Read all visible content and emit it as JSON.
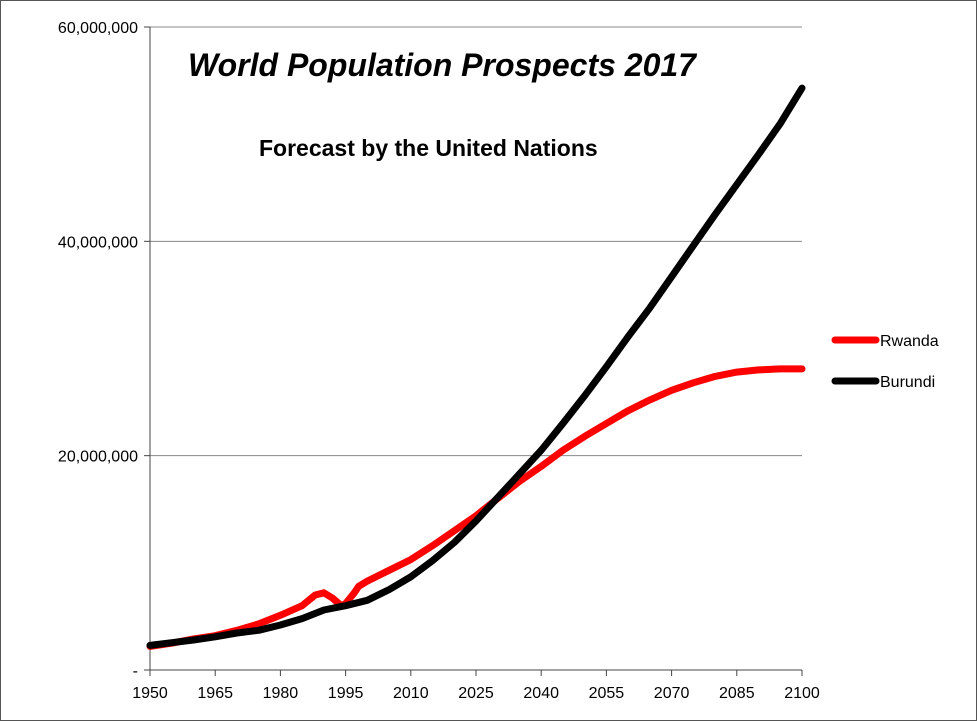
{
  "chart_data": {
    "type": "line",
    "title": "World Population Prospects 2017",
    "subtitle": "Forecast by the United Nations",
    "xlabel": "",
    "ylabel": "",
    "xlim": [
      1950,
      2100
    ],
    "ylim": [
      0,
      60000000
    ],
    "x_ticks": [
      "1950",
      "1965",
      "1980",
      "1995",
      "2010",
      "2025",
      "2040",
      "2055",
      "2070",
      "2085",
      "2100"
    ],
    "y_ticks": [
      {
        "value": 0,
        "label": "-"
      },
      {
        "value": 20000000,
        "label": "20,000,000"
      },
      {
        "value": 40000000,
        "label": "40,000,000"
      },
      {
        "value": 60000000,
        "label": "60,000,000"
      }
    ],
    "grid": "horizontal",
    "legend_position": "right",
    "series": [
      {
        "name": "Rwanda",
        "color": "#ff0000",
        "x": [
          1950,
          1955,
          1960,
          1965,
          1970,
          1975,
          1980,
          1985,
          1988,
          1990,
          1992,
          1994,
          1995,
          1997,
          1998,
          2000,
          2003,
          2005,
          2010,
          2015,
          2020,
          2025,
          2030,
          2035,
          2040,
          2045,
          2050,
          2055,
          2060,
          2065,
          2070,
          2075,
          2080,
          2085,
          2090,
          2095,
          2100
        ],
        "y": [
          2200000,
          2500000,
          2900000,
          3200000,
          3700000,
          4300000,
          5100000,
          6000000,
          7000000,
          7200000,
          6700000,
          6000000,
          6200000,
          7200000,
          7800000,
          8300000,
          8900000,
          9300000,
          10300000,
          11600000,
          13000000,
          14400000,
          16000000,
          17600000,
          19000000,
          20500000,
          21800000,
          23000000,
          24200000,
          25200000,
          26100000,
          26800000,
          27400000,
          27800000,
          28000000,
          28100000,
          28100000
        ]
      },
      {
        "name": "Burundi",
        "color": "#000000",
        "x": [
          1950,
          1955,
          1960,
          1965,
          1970,
          1975,
          1980,
          1985,
          1990,
          1995,
          2000,
          2005,
          2010,
          2015,
          2020,
          2025,
          2030,
          2035,
          2040,
          2045,
          2050,
          2055,
          2060,
          2065,
          2070,
          2075,
          2080,
          2085,
          2090,
          2095,
          2100
        ],
        "y": [
          2300000,
          2550000,
          2800000,
          3100000,
          3450000,
          3700000,
          4200000,
          4800000,
          5600000,
          6000000,
          6500000,
          7500000,
          8700000,
          10200000,
          11900000,
          13900000,
          16100000,
          18300000,
          20500000,
          23000000,
          25600000,
          28300000,
          31100000,
          33800000,
          36700000,
          39600000,
          42500000,
          45300000,
          48100000,
          51000000,
          54300000
        ]
      }
    ]
  },
  "legend": {
    "items": [
      {
        "label": "Rwanda",
        "color": "#ff0000"
      },
      {
        "label": "Burundi",
        "color": "#000000"
      }
    ]
  }
}
